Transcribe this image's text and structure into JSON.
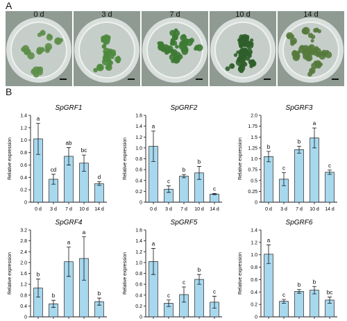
{
  "panels": {
    "a": "A",
    "b": "B"
  },
  "photos": [
    {
      "label": "0 d",
      "tone": "#5d8f4a",
      "density": 9
    },
    {
      "label": "3 d",
      "tone": "#4e8a3e",
      "density": 12
    },
    {
      "label": "7 d",
      "tone": "#3d7a33",
      "density": 18
    },
    {
      "label": "10 d",
      "tone": "#2f5f2a",
      "density": 22
    },
    {
      "label": "14 d",
      "tone": "#557a3c",
      "density": 20
    }
  ],
  "colors": {
    "bar": "#a7d8ee",
    "bar_edge": "#1c1c1c",
    "dish": "#d9dfdc"
  },
  "chart_data": [
    {
      "type": "bar",
      "title": "SpGRF1",
      "ylabel": "Relative expression",
      "categories": [
        "0 d",
        "3 d",
        "7 d",
        "10 d",
        "14 d"
      ],
      "values": [
        1.02,
        0.37,
        0.74,
        0.63,
        0.3
      ],
      "errors": [
        0.25,
        0.08,
        0.14,
        0.13,
        0.03
      ],
      "letters": [
        "a",
        "cd",
        "ab",
        "bc",
        "d"
      ],
      "ylim": [
        0,
        1.4
      ],
      "yticks": [
        "0",
        "0.2",
        "0.4",
        "0.6",
        "0.8",
        "1.0",
        "1.2",
        "1.4"
      ]
    },
    {
      "type": "bar",
      "title": "SpGRF2",
      "ylabel": "Relative expression",
      "categories": [
        "0 d",
        "3 d",
        "7 d",
        "10 d",
        "14 d"
      ],
      "values": [
        1.03,
        0.24,
        0.48,
        0.54,
        0.15
      ],
      "errors": [
        0.28,
        0.06,
        0.03,
        0.12,
        0.01
      ],
      "letters": [
        "a",
        "c",
        "b",
        "b",
        "c"
      ],
      "ylim": [
        0,
        1.6
      ],
      "yticks": [
        "0",
        "0.2",
        "0.4",
        "0.6",
        "0.8",
        "1.0",
        "1.2",
        "1.4",
        "1.6"
      ]
    },
    {
      "type": "bar",
      "title": "SpGRF3",
      "ylabel": "Relative expression",
      "categories": [
        "0 d",
        "3 d",
        "7 d",
        "10 d",
        "14 d"
      ],
      "values": [
        1.05,
        0.53,
        1.21,
        1.48,
        0.69
      ],
      "errors": [
        0.12,
        0.15,
        0.08,
        0.23,
        0.05
      ],
      "letters": [
        "b",
        "c",
        "b",
        "a",
        "c"
      ],
      "ylim": [
        0,
        2.0
      ],
      "yticks": [
        "0",
        "0.25",
        "0.5",
        "0.75",
        "1.0",
        "1.25",
        "1.5",
        "1.75",
        "2.0"
      ]
    },
    {
      "type": "bar",
      "title": "SpGRF4",
      "ylabel": "Relative expression",
      "categories": [
        "0 d",
        "3 d",
        "7 d",
        "10 d",
        "14 d"
      ],
      "values": [
        1.06,
        0.48,
        2.03,
        2.15,
        0.56
      ],
      "errors": [
        0.33,
        0.13,
        0.54,
        0.8,
        0.13
      ],
      "letters": [
        "b",
        "b",
        "a",
        "a",
        "b"
      ],
      "ylim": [
        0,
        3.2
      ],
      "yticks": [
        "0",
        "0.4",
        "0.8",
        "1.2",
        "1.6",
        "2.0",
        "2.4",
        "2.8",
        "3.2"
      ]
    },
    {
      "type": "bar",
      "title": "SpGRF5",
      "ylabel": "Relative expression",
      "categories": [
        "0 d",
        "3 d",
        "7 d",
        "10 d",
        "14 d"
      ],
      "values": [
        1.02,
        0.25,
        0.41,
        0.69,
        0.27
      ],
      "errors": [
        0.24,
        0.06,
        0.14,
        0.09,
        0.11
      ],
      "letters": [
        "a",
        "c",
        "c",
        "b",
        "c"
      ],
      "ylim": [
        0,
        1.6
      ],
      "yticks": [
        "0",
        "0.2",
        "0.4",
        "0.6",
        "0.8",
        "1.0",
        "1.2",
        "1.4",
        "1.6"
      ]
    },
    {
      "type": "bar",
      "title": "SpGRF6",
      "ylabel": "Relative expression",
      "categories": [
        "0 d",
        "3 d",
        "7 d",
        "10 d",
        "14 d"
      ],
      "values": [
        1.01,
        0.25,
        0.41,
        0.43,
        0.27
      ],
      "errors": [
        0.15,
        0.03,
        0.03,
        0.06,
        0.05
      ],
      "letters": [
        "a",
        "c",
        "b",
        "b",
        "bc"
      ],
      "ylim": [
        0,
        1.4
      ],
      "yticks": [
        "0",
        "0.2",
        "0.4",
        "0.6",
        "0.8",
        "1.0",
        "1.2",
        "1.4"
      ]
    }
  ]
}
